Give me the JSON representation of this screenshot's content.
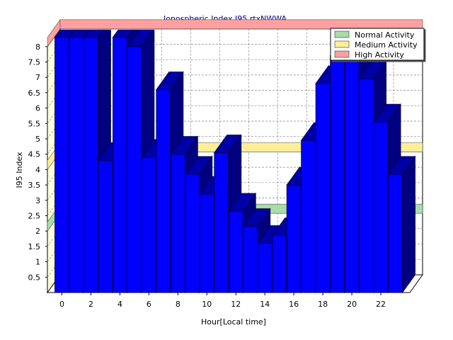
{
  "chart_data": {
    "type": "bar",
    "title": "Ionospheric Index I95 rtxNWWA",
    "xlabel": "Hour[Local time]",
    "ylabel": "I95 Index",
    "ylim": [
      0,
      8
    ],
    "grid": true,
    "legend_position": "top-right",
    "x_ticks": [
      "0",
      "2",
      "4",
      "6",
      "8",
      "10",
      "12",
      "14",
      "16",
      "18",
      "20",
      "22"
    ],
    "y_ticks": [
      "0.5",
      "1",
      "1.5",
      "2",
      "2.5",
      "3",
      "3.5",
      "4",
      "4.5",
      "5",
      "5.5",
      "6",
      "6.5",
      "7",
      "7.5",
      "8"
    ],
    "bar_color": "#0000ff",
    "bands": [
      {
        "name": "Normal Activity",
        "from": 2.0,
        "to": 2.3,
        "color": "#a8dca8"
      },
      {
        "name": "Medium Activity",
        "from": 4.0,
        "to": 4.3,
        "color": "#ffee99"
      },
      {
        "name": "High Activity",
        "from": 8.0,
        "to": 8.3,
        "color": "#ffa0a0"
      }
    ],
    "hours": [
      0,
      1,
      2,
      3,
      4,
      5,
      6,
      7,
      8,
      9,
      10,
      11,
      12,
      13,
      14,
      15,
      16,
      17,
      18,
      19,
      20,
      21,
      22,
      23
    ],
    "values": [
      8.3,
      8.3,
      8.3,
      4.3,
      8.3,
      8.0,
      4.4,
      6.6,
      4.5,
      3.85,
      3.2,
      4.55,
      2.65,
      2.15,
      1.6,
      1.85,
      3.5,
      4.95,
      6.8,
      7.7,
      7.6,
      6.95,
      5.55,
      3.85
    ]
  }
}
